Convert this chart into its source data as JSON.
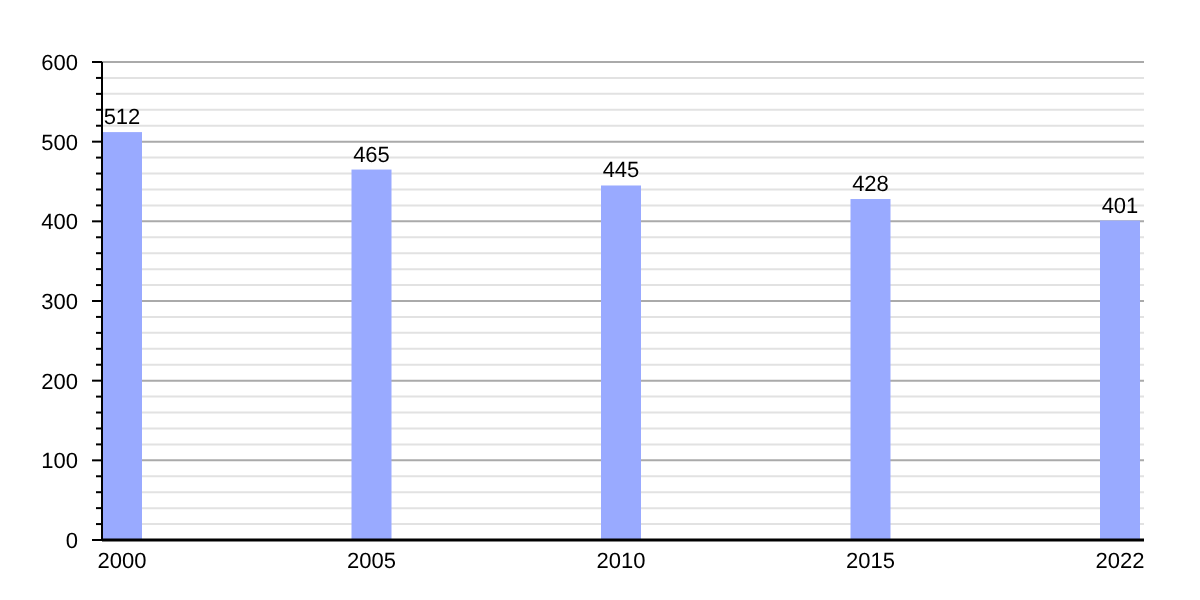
{
  "chart_data": {
    "type": "bar",
    "categories": [
      "2000",
      "2005",
      "2010",
      "2015",
      "2022"
    ],
    "values": [
      512,
      465,
      445,
      428,
      401
    ],
    "color": "#99aaff",
    "data_labels": true,
    "grid": "y",
    "ylim": [
      0,
      600
    ],
    "yticks": [
      0,
      {
        "value": 20,
        "label": null
      },
      {
        "value": 40,
        "label": null
      },
      {
        "value": 60,
        "label": null
      },
      {
        "value": 80,
        "label": null
      },
      100,
      {
        "value": 120,
        "label": null
      },
      {
        "value": 140,
        "label": null
      },
      {
        "value": 160,
        "label": null
      },
      {
        "value": 180,
        "label": null
      },
      200,
      {
        "value": 220,
        "label": null
      },
      {
        "value": 240,
        "label": null
      },
      {
        "value": 260,
        "label": null
      },
      {
        "value": 280,
        "label": null
      },
      300,
      {
        "value": 320,
        "label": null
      },
      {
        "value": 340,
        "label": null
      },
      {
        "value": 360,
        "label": null
      },
      {
        "value": 380,
        "label": null
      },
      400,
      {
        "value": 420,
        "label": null
      },
      {
        "value": 440,
        "label": null
      },
      {
        "value": 460,
        "label": null
      },
      {
        "value": 480,
        "label": null
      },
      500,
      {
        "value": 520,
        "label": null
      },
      {
        "value": 540,
        "label": null
      },
      {
        "value": 560,
        "label": null
      },
      {
        "value": 580,
        "label": null
      },
      600
    ]
  }
}
